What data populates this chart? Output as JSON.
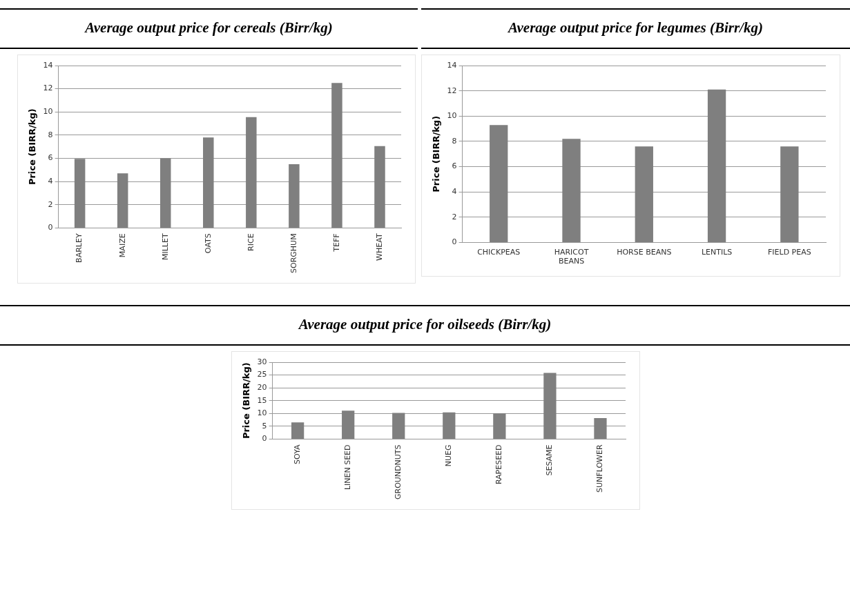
{
  "chart_data": [
    {
      "type": "bar",
      "title": "Average output price for cereals (Birr/kg)",
      "ylabel": "Price (BIRR/kg)",
      "categories": [
        "BARLEY",
        "MAIZE",
        "MILLET",
        "OATS",
        "RICE",
        "SORGHUM",
        "TEFF",
        "WHEAT"
      ],
      "values": [
        5.95,
        4.7,
        6.0,
        7.8,
        9.55,
        5.5,
        12.5,
        7.05
      ],
      "color": "#7f7f7f",
      "ylim": [
        0,
        14
      ],
      "yticks": [
        0,
        2,
        4,
        6,
        8,
        10,
        12,
        14
      ],
      "grid": "y",
      "legend": false
    },
    {
      "type": "bar",
      "title": "Average output price for legumes (Birr/kg)",
      "ylabel": "Price (BIRR/kg)",
      "categories": [
        "CHICKPEAS",
        "HARICOT BEANS",
        "HORSE BEANS",
        "LENTILS",
        "FIELD PEAS"
      ],
      "values": [
        9.3,
        8.2,
        7.6,
        12.1,
        7.6
      ],
      "color": "#7f7f7f",
      "ylim": [
        0,
        14
      ],
      "yticks": [
        0,
        2,
        4,
        6,
        8,
        10,
        12,
        14
      ],
      "grid": "y",
      "legend": false
    },
    {
      "type": "bar",
      "title": "Average output price for oilseeds (Birr/kg)",
      "ylabel": "Price (BIRR/kg)",
      "categories": [
        "SOYA",
        "LINEN SEED",
        "GROUNDNUTS",
        "NUEG",
        "RAPESEED",
        "SESAME",
        "SUNFLOWER"
      ],
      "values": [
        6.5,
        11.1,
        10.2,
        10.4,
        10.0,
        25.8,
        8.2
      ],
      "color": "#7f7f7f",
      "ylim": [
        0,
        30
      ],
      "yticks": [
        0,
        5,
        10,
        15,
        20,
        25,
        30
      ],
      "grid": "y",
      "legend": false
    }
  ]
}
